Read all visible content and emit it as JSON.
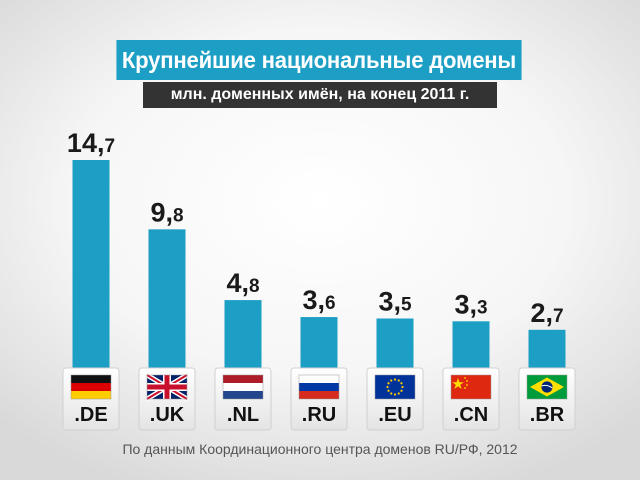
{
  "title": "Крупнейшие национальные домены",
  "subtitle": "млн. доменных имён, на конец 2011 г.",
  "source": "По данным Координационного центра доменов RU/РФ, 2012",
  "colors": {
    "bar": "#1d9fc5",
    "label": "#1a1a1a",
    "title_bg": "#1d9fc5",
    "subtitle_bg": "#333333"
  },
  "chart_data": {
    "type": "bar",
    "title": "Крупнейшие национальные домены",
    "subtitle": "млн. доменных имён, на конец 2011 г.",
    "categories": [
      ".DE",
      ".UK",
      ".NL",
      ".RU",
      ".EU",
      ".CN",
      ".BR"
    ],
    "values": [
      14.7,
      9.8,
      4.8,
      3.6,
      3.5,
      3.3,
      2.7
    ],
    "value_labels": [
      {
        "int": "14",
        "dec": "7"
      },
      {
        "int": "9",
        "dec": "8"
      },
      {
        "int": "4",
        "dec": "8"
      },
      {
        "int": "3",
        "dec": "6"
      },
      {
        "int": "3",
        "dec": "5"
      },
      {
        "int": "3",
        "dec": "3"
      },
      {
        "int": "2",
        "dec": "7"
      }
    ],
    "flags": [
      "germany-flag",
      "united-kingdom-flag",
      "netherlands-flag",
      "russia-flag",
      "european-union-flag",
      "china-flag",
      "brazil-flag"
    ],
    "ylim": [
      0,
      15
    ],
    "grid": false,
    "legend": "none"
  }
}
